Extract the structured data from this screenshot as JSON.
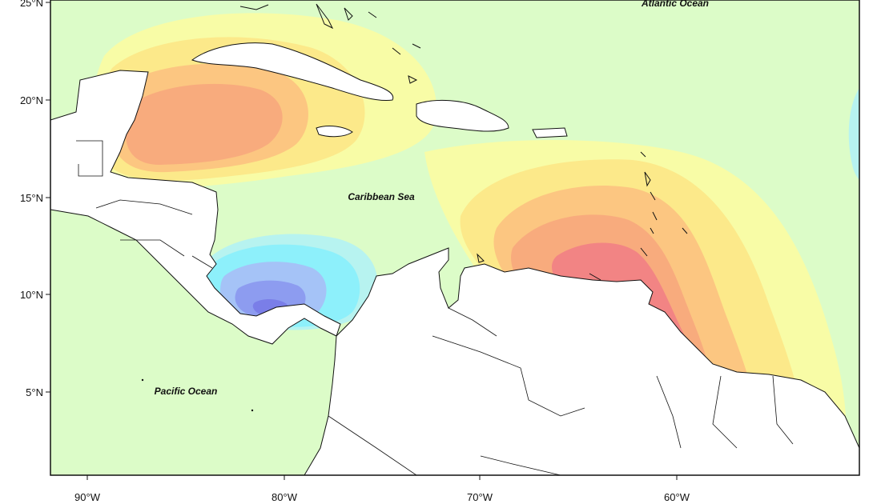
{
  "map": {
    "latitude_ticks": [
      "25°N",
      "20°N",
      "15°N",
      "10°N",
      "5°N"
    ],
    "longitude_ticks": [
      "90°W",
      "80°W",
      "70°W",
      "60°W"
    ],
    "labels": {
      "atlantic": "Atlantic Ocean",
      "caribbean": "Caribbean Sea",
      "pacific": "Pacific Ocean"
    },
    "colors": {
      "base": "#dcfcc8",
      "yellow_light": "#f8fca6",
      "yellow": "#fce98a",
      "orange_light": "#fcc681",
      "orange": "#f8ab7d",
      "red": "#f28484",
      "cyan_light": "#b7f3f0",
      "cyan": "#8df0fb",
      "blue_light": "#a5c3f7",
      "blue": "#8d9cf0",
      "blue_dark": "#7a7ee8"
    }
  }
}
